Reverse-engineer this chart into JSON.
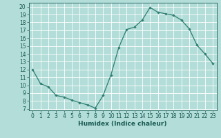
{
  "x": [
    0,
    1,
    2,
    3,
    4,
    5,
    6,
    7,
    8,
    9,
    10,
    11,
    12,
    13,
    14,
    15,
    16,
    17,
    18,
    19,
    20,
    21,
    22,
    23
  ],
  "y": [
    12,
    10.2,
    9.8,
    8.7,
    8.5,
    8.1,
    7.8,
    7.5,
    7.1,
    8.7,
    11.3,
    14.8,
    17.1,
    17.4,
    18.3,
    19.9,
    19.3,
    19.1,
    18.9,
    18.3,
    17.2,
    15.1,
    14.0,
    12.8
  ],
  "line_color": "#2e7d70",
  "marker": "D",
  "marker_size": 1.8,
  "bg_color": "#b2ddd8",
  "grid_color": "#ffffff",
  "xlabel": "Humidex (Indice chaleur)",
  "xlabel_fontsize": 6.5,
  "xlabel_color": "#1a5a52",
  "xlabel_weight": "bold",
  "ylabel_ticks": [
    7,
    8,
    9,
    10,
    11,
    12,
    13,
    14,
    15,
    16,
    17,
    18,
    19,
    20
  ],
  "xticks": [
    0,
    1,
    2,
    3,
    4,
    5,
    6,
    7,
    8,
    9,
    10,
    11,
    12,
    13,
    14,
    15,
    16,
    17,
    18,
    19,
    20,
    21,
    22,
    23
  ],
  "xlim": [
    -0.5,
    23.5
  ],
  "ylim": [
    6.8,
    20.5
  ],
  "tick_color": "#1a5a52",
  "tick_fontsize": 5.5,
  "line_width": 0.9
}
